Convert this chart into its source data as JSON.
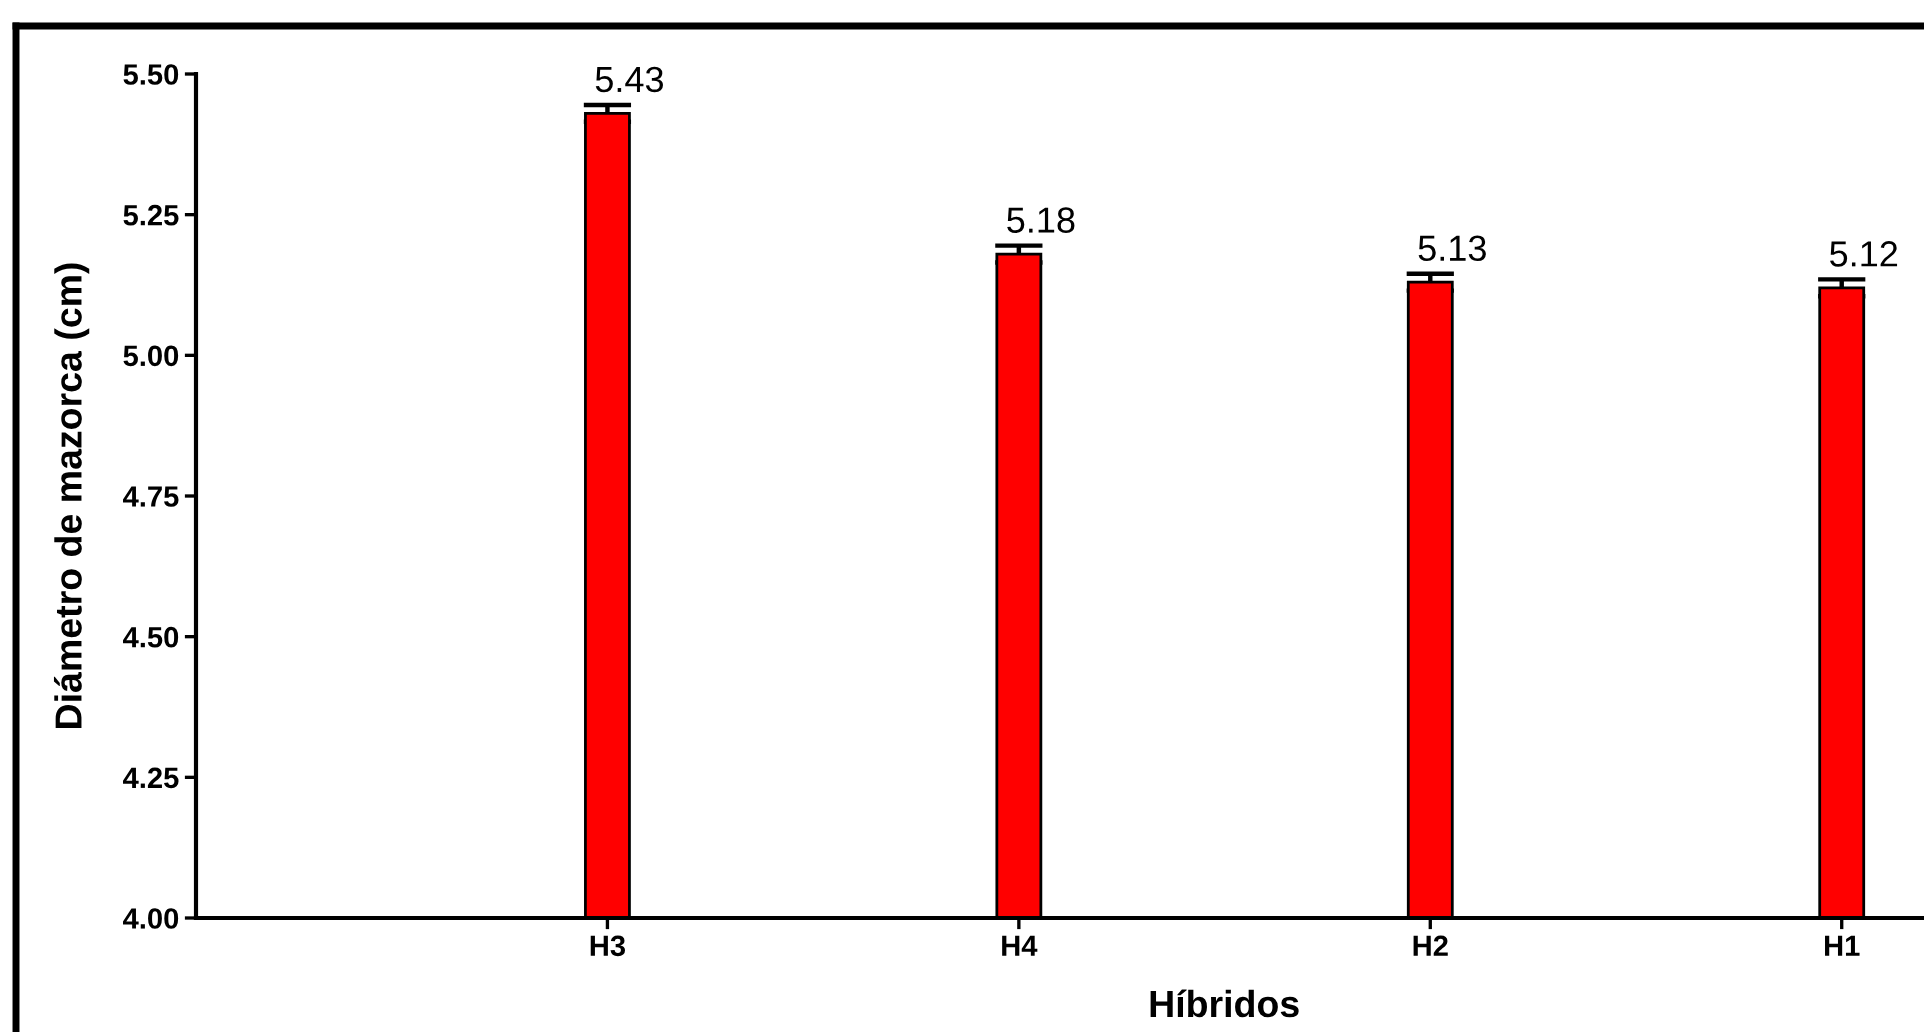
{
  "chart_data": {
    "type": "bar",
    "xlabel": "Híbridos",
    "ylabel": "Diámetro de mazorca (cm)",
    "categories": [
      "H3",
      "H4",
      "H2",
      "H1"
    ],
    "values": [
      5.43,
      5.18,
      5.13,
      5.12
    ],
    "errors": [
      0.015,
      0.015,
      0.015,
      0.015
    ],
    "color": "#ff0000",
    "data_labels": true,
    "ylim": [
      4.0,
      5.5
    ],
    "yticks": [
      {
        "value": 4.0,
        "label": "4.00"
      },
      4.25,
      {
        "value": 4.5,
        "label": "4.50"
      },
      4.75,
      {
        "value": 5.0,
        "label": "5.00"
      },
      5.25,
      {
        "value": 5.5,
        "label": "5.50"
      }
    ]
  }
}
